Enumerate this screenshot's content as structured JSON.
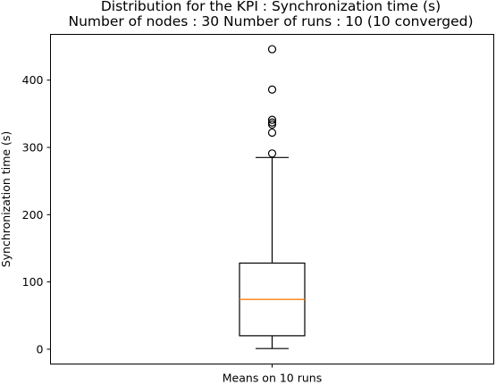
{
  "chart_data": {
    "type": "box",
    "title": "Distribution for the KPI : Synchronization time (s)",
    "subtitle": "Number of nodes : 30   Number of runs : 10 (10 converged)",
    "xlabel": "",
    "ylabel": "Synchronization time (s)",
    "ylim": [
      -22,
      468
    ],
    "yticks": [
      0,
      100,
      200,
      300,
      400
    ],
    "grid": false,
    "legend": "none",
    "categories": [
      "Means on 10 runs"
    ],
    "boxes": [
      {
        "category": "Means on 10 runs",
        "whisker_low": 1,
        "q1": 20,
        "median": 74,
        "q3": 128,
        "whisker_high": 285,
        "outliers": [
          291,
          322,
          334,
          337,
          341,
          386,
          446
        ]
      }
    ],
    "colors": {
      "box": "#000000",
      "median": "#ff7f0e",
      "whisker": "#000000",
      "outlier_edge": "#000000",
      "axes": "#000000"
    }
  }
}
